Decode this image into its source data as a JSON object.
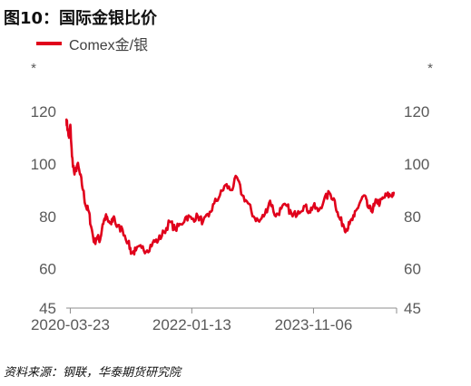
{
  "title": "图10：国际金银比价",
  "source": "资料来源：钢联，华泰期货研究院",
  "chart_data": {
    "type": "line",
    "y_unit_left": "*",
    "y_unit_right": "*",
    "ylim": [
      45,
      127
    ],
    "yticks": [
      45,
      60,
      80,
      100,
      120
    ],
    "xlim": [
      "2020-03-01",
      "2025-01-31"
    ],
    "x_tick_labels": [
      "2020-03-23",
      "2022-01-13",
      "2023-11-06"
    ],
    "grid": false,
    "legend": "top-left",
    "series": [
      {
        "name": "Comex金/银",
        "color": "#e0001b",
        "points": [
          [
            "2020-03-02",
            117
          ],
          [
            "2020-03-09",
            113
          ],
          [
            "2020-03-16",
            110
          ],
          [
            "2020-03-23",
            115
          ],
          [
            "2020-04-01",
            103
          ],
          [
            "2020-04-15",
            96
          ],
          [
            "2020-05-01",
            100
          ],
          [
            "2020-05-15",
            96
          ],
          [
            "2020-06-01",
            90
          ],
          [
            "2020-06-15",
            84
          ],
          [
            "2020-07-01",
            82
          ],
          [
            "2020-07-15",
            76
          ],
          [
            "2020-08-01",
            70
          ],
          [
            "2020-08-15",
            72
          ],
          [
            "2020-09-01",
            71
          ],
          [
            "2020-09-15",
            77
          ],
          [
            "2020-10-01",
            80
          ],
          [
            "2020-10-15",
            78
          ],
          [
            "2020-11-01",
            77
          ],
          [
            "2020-11-15",
            80
          ],
          [
            "2020-12-01",
            76
          ],
          [
            "2021-01-01",
            75
          ],
          [
            "2021-02-01",
            70
          ],
          [
            "2021-02-20",
            66
          ],
          [
            "2021-03-15",
            67
          ],
          [
            "2021-04-15",
            68
          ],
          [
            "2021-05-15",
            67
          ],
          [
            "2021-06-15",
            70
          ],
          [
            "2021-07-15",
            71
          ],
          [
            "2021-08-15",
            74
          ],
          [
            "2021-09-15",
            78
          ],
          [
            "2021-10-15",
            75
          ],
          [
            "2021-11-15",
            77
          ],
          [
            "2021-12-15",
            80
          ],
          [
            "2022-01-13",
            79
          ],
          [
            "2022-02-15",
            80
          ],
          [
            "2022-03-15",
            78
          ],
          [
            "2022-04-15",
            80
          ],
          [
            "2022-05-15",
            85
          ],
          [
            "2022-06-15",
            88
          ],
          [
            "2022-07-15",
            92
          ],
          [
            "2022-08-15",
            90
          ],
          [
            "2022-09-15",
            95
          ],
          [
            "2022-10-15",
            88
          ],
          [
            "2022-11-15",
            85
          ],
          [
            "2022-12-15",
            80
          ],
          [
            "2023-01-15",
            78
          ],
          [
            "2023-02-15",
            81
          ],
          [
            "2023-03-15",
            86
          ],
          [
            "2023-04-15",
            80
          ],
          [
            "2023-05-15",
            83
          ],
          [
            "2023-06-15",
            84
          ],
          [
            "2023-07-15",
            80
          ],
          [
            "2023-08-15",
            82
          ],
          [
            "2023-09-15",
            84
          ],
          [
            "2023-10-15",
            82
          ],
          [
            "2023-11-06",
            84
          ],
          [
            "2023-12-01",
            82
          ],
          [
            "2024-01-01",
            86
          ],
          [
            "2024-02-01",
            89
          ],
          [
            "2024-03-01",
            86
          ],
          [
            "2024-03-20",
            80
          ],
          [
            "2024-04-15",
            77
          ],
          [
            "2024-05-01",
            75
          ],
          [
            "2024-05-20",
            77
          ],
          [
            "2024-06-15",
            80
          ],
          [
            "2024-07-01",
            83
          ],
          [
            "2024-07-20",
            86
          ],
          [
            "2024-08-10",
            88
          ],
          [
            "2024-08-25",
            84
          ],
          [
            "2024-09-15",
            82
          ],
          [
            "2024-10-01",
            84
          ],
          [
            "2024-10-15",
            86
          ],
          [
            "2024-11-01",
            85
          ],
          [
            "2024-11-20",
            87
          ],
          [
            "2024-12-10",
            88
          ],
          [
            "2025-01-01",
            88
          ],
          [
            "2025-01-15",
            89
          ]
        ]
      }
    ]
  }
}
